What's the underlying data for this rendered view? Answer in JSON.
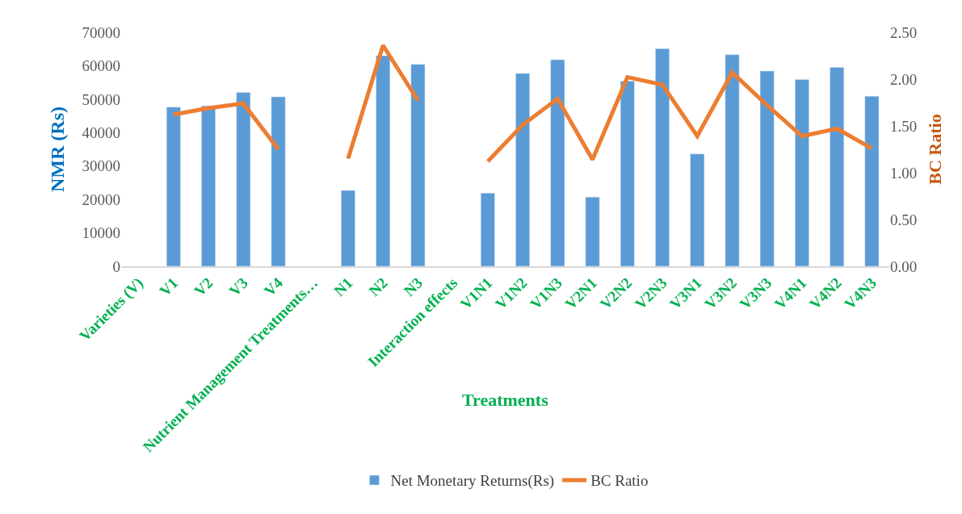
{
  "chart_data": {
    "type": "bar",
    "xlabel": "Treatments",
    "ylabel": "NMR (Rs)",
    "y2label": "BC Ratio",
    "categories": [
      "Varieties (V)",
      "V1",
      "V2",
      "V3",
      "V4",
      "Nutrient Management Treatments…",
      "N1",
      "N2",
      "N3",
      "Interaction effects",
      "V1N1",
      "V1N2",
      "V1N3",
      "V2N1",
      "V2N2",
      "V2N3",
      "V3N1",
      "V3N2",
      "V3N3",
      "V4N1",
      "V4N2",
      "V4N3"
    ],
    "series": [
      {
        "name": "Net Monetary Returns(Rs)",
        "color": "#5b9bd5",
        "values": [
          null,
          47600,
          48000,
          52000,
          50700,
          null,
          22700,
          63000,
          60400,
          null,
          21900,
          57700,
          61800,
          20700,
          55400,
          65100,
          33600,
          63300,
          58400,
          55900,
          59500,
          50900
        ]
      },
      {
        "name": "BC Ratio",
        "type": "line",
        "axis": "y2",
        "color": "#ed7d31",
        "values": [
          null,
          1.62,
          1.69,
          1.74,
          1.25,
          null,
          1.15,
          2.36,
          1.77,
          null,
          1.12,
          1.51,
          1.79,
          1.14,
          2.02,
          1.94,
          1.39,
          2.07,
          1.72,
          1.39,
          1.47,
          1.26
        ]
      }
    ],
    "ylim": [
      0,
      70000
    ],
    "yticks": [
      0,
      10000,
      20000,
      30000,
      40000,
      50000,
      60000,
      70000
    ],
    "y2lim": [
      0,
      2.5
    ],
    "y2ticks": [
      {
        "value": 0,
        "label": "0.00"
      },
      {
        "value": 0.5,
        "label": "0.50"
      },
      {
        "value": 1,
        "label": "1.00"
      },
      {
        "value": 1.5,
        "label": "1.50"
      },
      {
        "value": 2,
        "label": "2.00"
      },
      {
        "value": 2.5,
        "label": "2.50"
      }
    ],
    "legend": "bottom",
    "marker": "none",
    "line_style": "solid"
  }
}
